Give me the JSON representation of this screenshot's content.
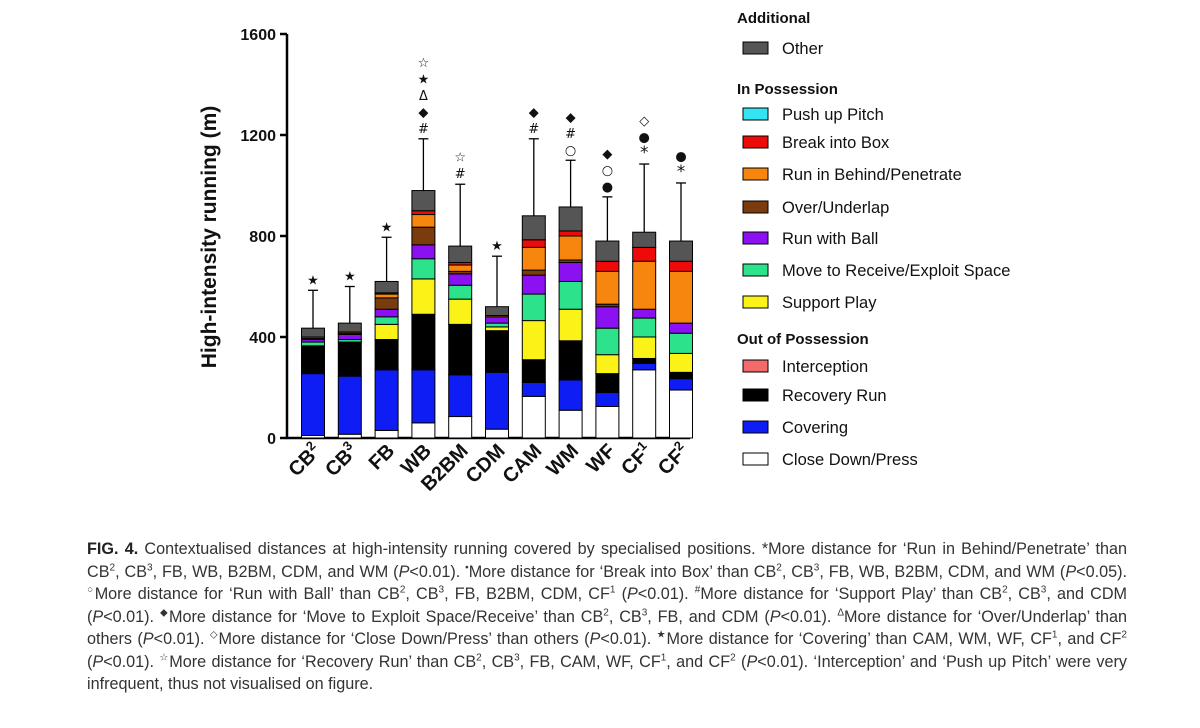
{
  "chart_data": {
    "type": "bar",
    "stacked": true,
    "ylabel": "High-intensity running (m)",
    "ylim": [
      0,
      1600
    ],
    "yticks": [
      0,
      400,
      800,
      1200,
      1600
    ],
    "categories": [
      {
        "base": "CB",
        "sup": "2"
      },
      {
        "base": "CB",
        "sup": "3"
      },
      {
        "base": "FB",
        "sup": ""
      },
      {
        "base": "WB",
        "sup": ""
      },
      {
        "base": "B2BM",
        "sup": ""
      },
      {
        "base": "CDM",
        "sup": ""
      },
      {
        "base": "CAM",
        "sup": ""
      },
      {
        "base": "WM",
        "sup": ""
      },
      {
        "base": "WF",
        "sup": ""
      },
      {
        "base": "CF",
        "sup": "1"
      },
      {
        "base": "CF",
        "sup": "2"
      }
    ],
    "series": [
      {
        "name": "Close Down/Press",
        "color": "#ffffff",
        "values": [
          10,
          15,
          30,
          60,
          85,
          35,
          165,
          110,
          125,
          270,
          190
        ]
      },
      {
        "name": "Covering",
        "color": "#0f1df5",
        "values": [
          245,
          230,
          240,
          210,
          165,
          225,
          55,
          120,
          55,
          25,
          45
        ]
      },
      {
        "name": "Recovery Run",
        "color": "#000000",
        "values": [
          110,
          135,
          120,
          220,
          200,
          165,
          90,
          155,
          75,
          20,
          25
        ]
      },
      {
        "name": "Interception",
        "color": "#f26a6a",
        "values": [
          0,
          0,
          0,
          0,
          0,
          0,
          0,
          0,
          0,
          0,
          0
        ]
      },
      {
        "name": "Support Play",
        "color": "#fbf317",
        "values": [
          0,
          0,
          60,
          140,
          100,
          15,
          155,
          125,
          75,
          85,
          75
        ]
      },
      {
        "name": "Move to Receive/Exploit Space",
        "color": "#2ce28a",
        "values": [
          15,
          10,
          30,
          80,
          55,
          15,
          105,
          110,
          105,
          75,
          80
        ]
      },
      {
        "name": "Run with Ball",
        "color": "#8b10f2",
        "values": [
          10,
          20,
          30,
          55,
          45,
          25,
          75,
          75,
          85,
          35,
          40
        ]
      },
      {
        "name": "Over/Underlap",
        "color": "#7a3c0e",
        "values": [
          5,
          5,
          45,
          70,
          10,
          0,
          20,
          10,
          10,
          0,
          0
        ]
      },
      {
        "name": "Run in Behind/Penetrate",
        "color": "#f7860e",
        "values": [
          5,
          5,
          15,
          50,
          25,
          5,
          90,
          95,
          130,
          190,
          205
        ]
      },
      {
        "name": "Break into Box",
        "color": "#ef0a0a",
        "values": [
          0,
          0,
          5,
          15,
          10,
          0,
          30,
          20,
          40,
          55,
          40
        ]
      },
      {
        "name": "Push up Pitch",
        "color": "#33e4f2",
        "values": [
          0,
          0,
          0,
          0,
          0,
          0,
          0,
          0,
          0,
          0,
          0
        ]
      },
      {
        "name": "Other",
        "color": "#555555",
        "values": [
          35,
          35,
          45,
          80,
          65,
          35,
          95,
          95,
          80,
          60,
          80
        ]
      }
    ],
    "error_bar_upper": [
      585,
      600,
      795,
      1185,
      1005,
      720,
      1185,
      1100,
      955,
      1085,
      1010
    ],
    "significance_marks": [
      [
        "★"
      ],
      [
        "★"
      ],
      [
        "★"
      ],
      [
        "#",
        "◆",
        "Δ",
        "★",
        "☆"
      ],
      [
        "#",
        "☆"
      ],
      [
        "★"
      ],
      [
        "#",
        "◆"
      ],
      [
        "○",
        "#",
        "◆"
      ],
      [
        "●",
        "○",
        "◆"
      ],
      [
        "*",
        "●",
        "◇"
      ],
      [
        "*",
        "●"
      ]
    ],
    "legend_groups": [
      {
        "title": "Additional",
        "items": [
          "Other"
        ]
      },
      {
        "title": "In Possession",
        "items": [
          "Push up Pitch",
          "Break into Box",
          "Run in Behind/Penetrate",
          "Over/Underlap",
          "Run with Ball",
          "Move to Receive/Exploit Space",
          "Support Play"
        ]
      },
      {
        "title": "Out of Possession",
        "items": [
          "Interception",
          "Recovery Run",
          "Covering",
          "Close Down/Press"
        ]
      }
    ],
    "legend_position": "right"
  },
  "caption": {
    "label": "FIG. 4.",
    "parts": [
      [
        " Contextualised distances at high-intensity running covered by specialised positions. *More distance for ‘Run in Behind/Penetrate’ than CB",
        "2",
        ", CB",
        "3",
        ", FB, WB, B2BM, CDM, and WM (",
        "P",
        "<0.01). "
      ],
      [
        "•",
        "More distance for ‘Break into Box’ than CB",
        "2",
        ", CB",
        "3",
        ", FB, WB, B2BM, CDM, and WM (",
        "P",
        "<0.05). "
      ],
      [
        "○",
        "More distance for ‘Run with Ball’ than CB",
        "2",
        ", CB",
        "3",
        ", FB, B2BM, CDM, CF",
        "1",
        " (",
        "P",
        "<0.01). "
      ],
      [
        "#",
        "More distance for ‘Support Play’ than CB",
        "2",
        ", CB",
        "3",
        ", and CDM (",
        "P",
        "<0.01). "
      ],
      [
        "◆",
        "More distance for ‘Move to Exploit Space/Receive’ than CB",
        "2",
        ", CB",
        "3",
        ", FB, and CDM (",
        "P",
        "<0.01). "
      ],
      [
        "Δ",
        "More distance for ‘Over/Underlap’ than others (",
        "P",
        "<0.01). "
      ],
      [
        "◇",
        "More distance for ‘Close Down/Press’ than others (",
        "P",
        "<0.01). "
      ],
      [
        "★",
        "More distance for ‘Covering’ than CAM, WM, WF, CF",
        "1",
        ", and CF",
        "2",
        " (",
        "P",
        "<0.01). "
      ],
      [
        "☆",
        "More distance for ‘Recovery Run’ than CB",
        "2",
        ", CB",
        "3",
        ", FB, CAM, WF, CF",
        "1",
        ", and CF",
        "2",
        " (",
        "P",
        "<0.01). "
      ],
      [
        "‘Interception’ and ‘Push up Pitch’ were very infrequent, thus not visualised on figure."
      ]
    ]
  }
}
